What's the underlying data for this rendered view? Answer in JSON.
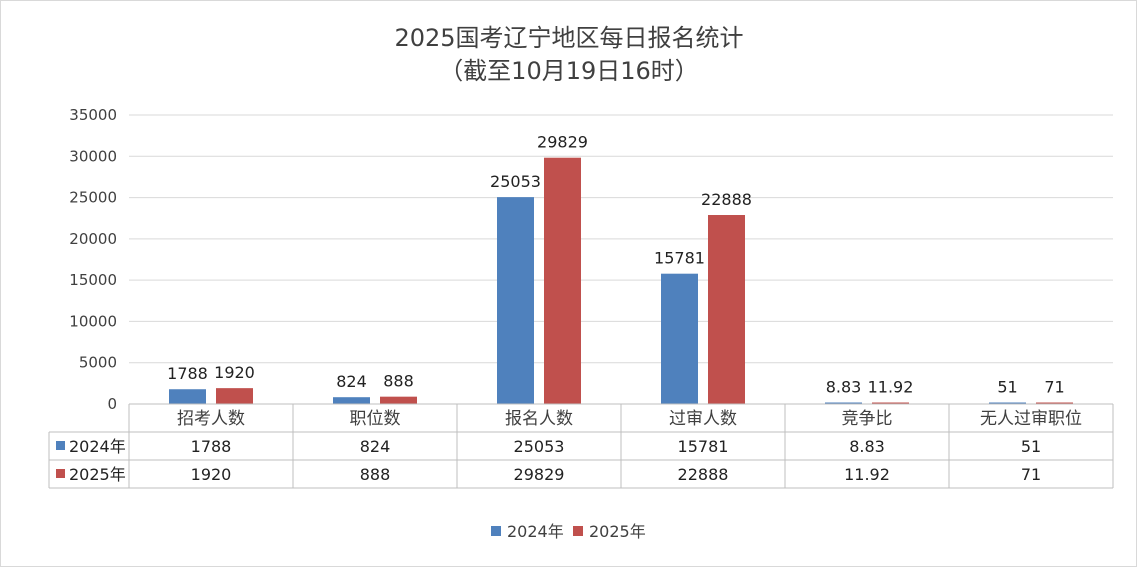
{
  "chart_data": {
    "type": "bar",
    "title": "2025国考辽宁地区每日报名统计",
    "subtitle": "（截至10月19日16时）",
    "categories": [
      "招考人数",
      "职位数",
      "报名人数",
      "过审人数",
      "竞争比",
      "无人过审职位"
    ],
    "series": [
      {
        "name": "2024年",
        "color": "#4f81bd",
        "values": [
          1788,
          824,
          25053,
          15781,
          8.83,
          51
        ],
        "labels": [
          "1788",
          "824",
          "25053",
          "15781",
          "8.83",
          "51"
        ]
      },
      {
        "name": "2025年",
        "color": "#c0504d",
        "values": [
          1920,
          888,
          29829,
          22888,
          11.92,
          71
        ],
        "labels": [
          "1920",
          "888",
          "29829",
          "22888",
          "11.92",
          "71"
        ]
      }
    ],
    "ylim": [
      0,
      35000
    ],
    "yticks": [
      "0",
      "5000",
      "10000",
      "15000",
      "20000",
      "25000",
      "30000",
      "35000"
    ],
    "grid": true,
    "legend": "bottom",
    "data_table": true
  }
}
